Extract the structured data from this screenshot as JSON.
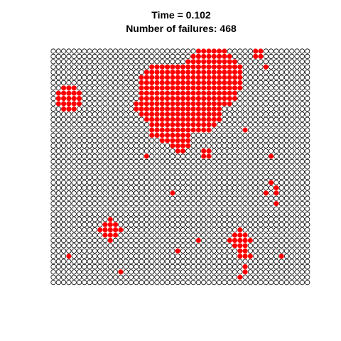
{
  "header": {
    "title": "Time = 0.102",
    "subtitle": "Number of failures: 468"
  },
  "chart_data": {
    "type": "scatter",
    "title": "Time = 0.102",
    "subtitle": "Number of failures: 468",
    "xlabel": "",
    "ylabel": "",
    "grid": false,
    "axes_visible": false,
    "grid_cols": 50,
    "grid_rows": 45,
    "failure_count": 468,
    "colors": {
      "failed": "#ff0000",
      "ok_stroke": "#000000",
      "ok_fill": "#ffffff"
    },
    "failed_regions": [
      {
        "kind": "disk",
        "center": [
          30.5,
          38.8
        ],
        "radius": 6.0
      },
      {
        "kind": "disk",
        "center": [
          25.5,
          33.0
        ],
        "radius": 5.0
      },
      {
        "kind": "disk",
        "center": [
          21.5,
          36.5
        ],
        "radius": 5.3
      },
      {
        "kind": "disk",
        "center": [
          22.0,
          30.5
        ],
        "radius": 4.0
      },
      {
        "kind": "disk",
        "center": [
          19.0,
          33.5
        ],
        "radius": 3.2
      },
      {
        "kind": "disk",
        "center": [
          29.0,
          32.0
        ],
        "radius": 3.5
      },
      {
        "kind": "disk",
        "center": [
          24.5,
          27.2
        ],
        "radius": 2.5
      },
      {
        "kind": "disk",
        "center": [
          3.0,
          35.0
        ],
        "radius": 2.5
      },
      {
        "kind": "disk",
        "center": [
          11.0,
          10.0
        ],
        "radius": 2.0
      },
      {
        "kind": "disk",
        "center": [
          36.0,
          8.0
        ],
        "radius": 2.0
      },
      {
        "kind": "disk",
        "center": [
          36.5,
          5.5
        ],
        "radius": 1.0
      },
      {
        "kind": "disk",
        "center": [
          29.8,
          24.5
        ],
        "radius": 1.1
      },
      {
        "kind": "disk",
        "center": [
          43.0,
          17.5
        ],
        "radius": 0.7
      }
    ],
    "failed_points": [
      [
        39,
        44
      ],
      [
        40,
        44
      ],
      [
        39,
        43
      ],
      [
        40,
        43
      ],
      [
        41,
        41
      ],
      [
        18,
        24
      ],
      [
        37,
        29
      ],
      [
        42,
        24
      ],
      [
        42,
        19
      ],
      [
        41,
        17
      ],
      [
        43,
        15
      ],
      [
        23,
        17
      ],
      [
        28,
        8
      ],
      [
        24,
        6
      ],
      [
        3,
        5
      ],
      [
        13,
        2
      ],
      [
        38,
        5
      ],
      [
        37,
        3
      ],
      [
        37,
        2
      ],
      [
        36,
        1
      ],
      [
        44,
        5
      ]
    ]
  }
}
